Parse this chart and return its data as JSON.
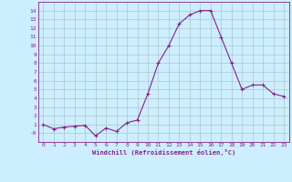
{
  "x": [
    0,
    1,
    2,
    3,
    4,
    5,
    6,
    7,
    8,
    9,
    10,
    11,
    12,
    13,
    14,
    15,
    16,
    17,
    18,
    19,
    20,
    21,
    22,
    23
  ],
  "y": [
    1.0,
    0.5,
    0.7,
    0.8,
    0.9,
    -0.3,
    0.6,
    0.2,
    1.2,
    1.5,
    4.5,
    8.0,
    10.0,
    12.5,
    13.5,
    14.0,
    14.0,
    11.0,
    8.0,
    5.0,
    5.5,
    5.5,
    4.5,
    4.2
  ],
  "line_color": "#882288",
  "marker": "+",
  "bg_color": "#cceeff",
  "grid_color": "#aabbbb",
  "xlabel": "Windchill (Refroidissement éolien,°C)",
  "ylim": [
    -1.0,
    15.0
  ],
  "xlim": [
    -0.5,
    23.5
  ],
  "font_color": "#882288",
  "yticks": [
    0,
    1,
    2,
    3,
    4,
    5,
    6,
    7,
    8,
    9,
    10,
    11,
    12,
    13,
    14
  ],
  "ytick_labels": [
    "-0",
    "1",
    "2",
    "3",
    "4",
    "5",
    "6",
    "7",
    "8",
    "9",
    "10",
    "11",
    "12",
    "13",
    "14"
  ],
  "xtick_labels": [
    "0",
    "1",
    "2",
    "3",
    "4",
    "5",
    "6",
    "7",
    "8",
    "9",
    "10",
    "11",
    "12",
    "13",
    "14",
    "15",
    "16",
    "17",
    "18",
    "19",
    "20",
    "21",
    "22",
    "23"
  ]
}
